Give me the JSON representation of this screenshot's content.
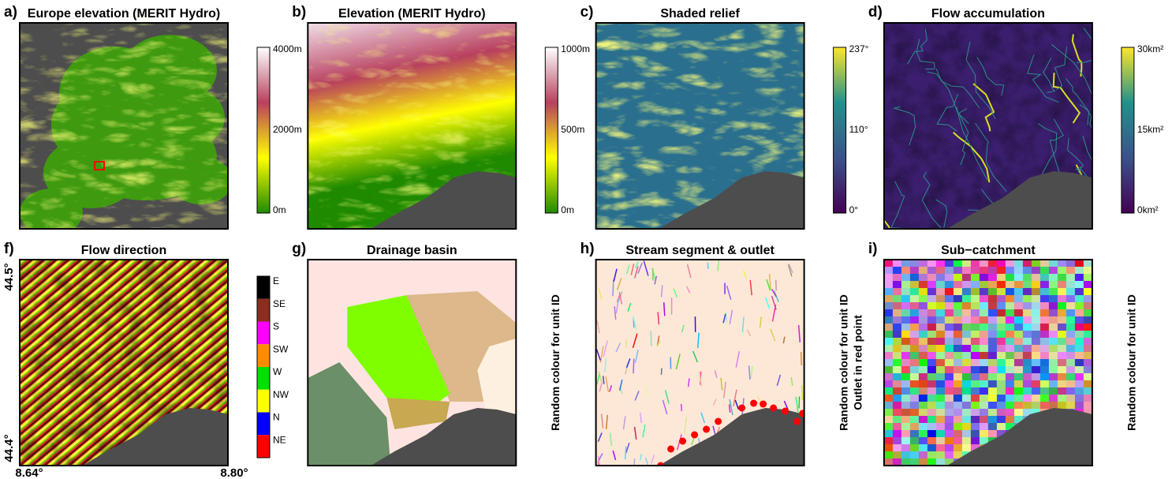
{
  "panels": [
    {
      "letter": "a)",
      "title": "Europe elevation (MERIT Hydro)",
      "colorbar": {
        "labels": [
          "4000m",
          "2000m",
          "0m"
        ],
        "colors": [
          "#ffffff",
          "#b8405e",
          "#ffff00",
          "#1f8a00"
        ]
      }
    },
    {
      "letter": "b)",
      "title": "Elevation (MERIT Hydro)",
      "colorbar": {
        "labels": [
          "1000m",
          "500m",
          "0m"
        ],
        "colors": [
          "#ffffff",
          "#b8405e",
          "#ffff00",
          "#1f8a00"
        ]
      }
    },
    {
      "letter": "c)",
      "title": "Shaded relief",
      "colorbar": {
        "labels": [
          "237°",
          "110°",
          "0°"
        ],
        "colors": [
          "#fde725",
          "#21918c",
          "#3b528b",
          "#440154"
        ]
      }
    },
    {
      "letter": "d)",
      "title": "Flow accumulation",
      "colorbar": {
        "labels": [
          "30km²",
          "15km²",
          "0km²"
        ],
        "colors": [
          "#fde725",
          "#21918c",
          "#3b528b",
          "#440154"
        ]
      }
    },
    {
      "letter": "f)",
      "title": "Flow direction",
      "yticks": [
        "44.5°",
        "44.4°"
      ],
      "xticks": [
        "8.64°",
        "8.80°"
      ],
      "legend": [
        {
          "label": "E",
          "color": "#000000"
        },
        {
          "label": "SE",
          "color": "#8b2e1e"
        },
        {
          "label": "S",
          "color": "#ff00ff"
        },
        {
          "label": "SW",
          "color": "#ff8c00"
        },
        {
          "label": "W",
          "color": "#00e000"
        },
        {
          "label": "NW",
          "color": "#ffff00"
        },
        {
          "label": "N",
          "color": "#0000ff"
        },
        {
          "label": "NE",
          "color": "#ff0000"
        }
      ]
    },
    {
      "letter": "g)",
      "title": "Drainage basin",
      "side_label": [
        "Random colour for unit ID"
      ]
    },
    {
      "letter": "h)",
      "title": "Stream segment & outlet",
      "side_label": [
        "Random colour for unit ID",
        "Outlet in red point"
      ]
    },
    {
      "letter": "i)",
      "title": "Sub−catchment",
      "side_label": [
        "Random colour for unit ID"
      ]
    }
  ]
}
